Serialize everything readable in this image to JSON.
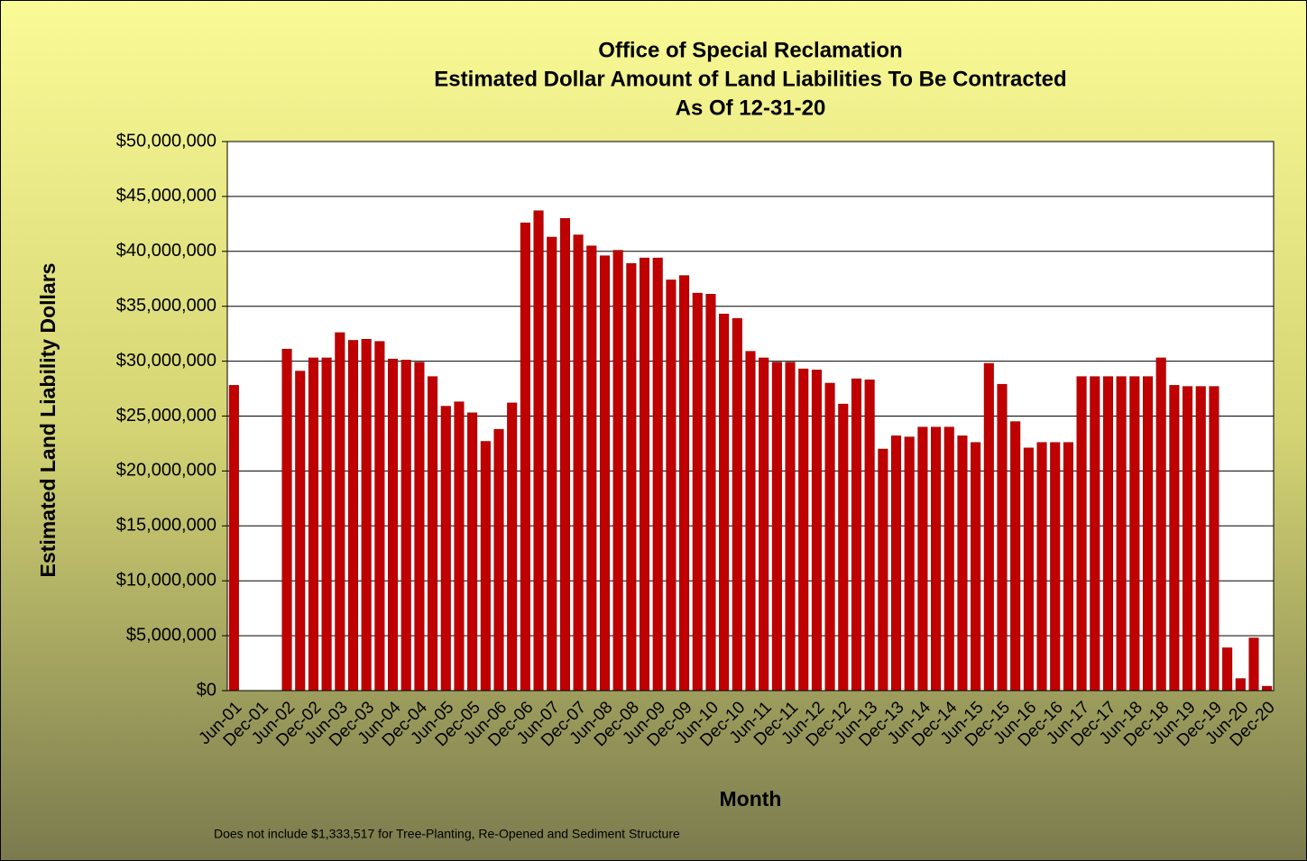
{
  "chart_data": {
    "type": "bar",
    "title": [
      "Office of Special Reclamation",
      "Estimated Dollar Amount of Land Liabilities To Be Contracted",
      "As Of 12-31-20"
    ],
    "x_label": "Month",
    "y_label": "Estimated Land Liability Dollars",
    "note": "Does not include $1,333,517 for Tree-Planting, Re-Opened and Sediment Structure",
    "color": "#c00000",
    "grid": true,
    "categories": [
      "Jun-01",
      null,
      "Dec-01",
      null,
      "Jun-02",
      null,
      "Dec-02",
      null,
      "Jun-03",
      null,
      "Dec-03",
      null,
      "Jun-04",
      null,
      "Dec-04",
      null,
      "Jun-05",
      null,
      "Dec-05",
      null,
      "Jun-06",
      null,
      "Dec-06",
      null,
      "Jun-07",
      null,
      "Dec-07",
      null,
      "Jun-08",
      null,
      "Dec-08",
      null,
      "Jun-09",
      null,
      "Dec-09",
      null,
      "Jun-10",
      null,
      "Dec-10",
      null,
      "Jun-11",
      null,
      "Dec-11",
      null,
      "Jun-12",
      null,
      "Dec-12",
      null,
      "Jun-13",
      null,
      "Dec-13",
      null,
      "Jun-14",
      null,
      "Dec-14",
      null,
      "Jun-15",
      null,
      "Dec-15",
      null,
      "Jun-16",
      null,
      "Dec-16",
      null,
      "Jun-17",
      null,
      "Dec-17",
      null,
      "Jun-18",
      null,
      "Dec-18",
      null,
      "Jun-19",
      null,
      "Dec-19",
      null,
      "Jun-20",
      null,
      "Dec-20"
    ],
    "values": [
      27800000,
      null,
      null,
      null,
      31100000,
      29100000,
      30300000,
      30300000,
      32600000,
      31900000,
      32000000,
      31800000,
      30200000,
      30100000,
      29900000,
      28600000,
      25900000,
      26300000,
      25300000,
      22700000,
      23800000,
      26200000,
      42600000,
      43700000,
      41300000,
      43000000,
      41500000,
      40500000,
      39600000,
      40100000,
      38900000,
      39400000,
      39400000,
      37400000,
      37800000,
      36200000,
      36100000,
      34300000,
      33900000,
      30900000,
      30300000,
      29900000,
      29900000,
      29300000,
      29200000,
      28000000,
      26100000,
      28400000,
      28300000,
      22000000,
      23200000,
      23100000,
      24000000,
      24000000,
      24000000,
      23200000,
      22600000,
      29800000,
      27900000,
      24500000,
      22100000,
      22600000,
      22600000,
      22600000,
      28600000,
      28600000,
      28600000,
      28600000,
      28600000,
      28600000,
      30300000,
      27800000,
      27700000,
      27700000,
      27700000,
      3900000,
      1100000,
      4800000,
      400000
    ],
    "ylim": [
      0,
      50000000
    ],
    "yticks": [
      {
        "value": 0,
        "label": "$0"
      },
      {
        "value": 5000000,
        "label": "$5,000,000"
      },
      {
        "value": 10000000,
        "label": "$10,000,000"
      },
      {
        "value": 15000000,
        "label": "$15,000,000"
      },
      {
        "value": 20000000,
        "label": "$20,000,000"
      },
      {
        "value": 25000000,
        "label": "$25,000,000"
      },
      {
        "value": 30000000,
        "label": "$30,000,000"
      },
      {
        "value": 35000000,
        "label": "$35,000,000"
      },
      {
        "value": 40000000,
        "label": "$40,000,000"
      },
      {
        "value": 45000000,
        "label": "$45,000,000"
      },
      {
        "value": 50000000,
        "label": "$50,000,000"
      }
    ]
  }
}
